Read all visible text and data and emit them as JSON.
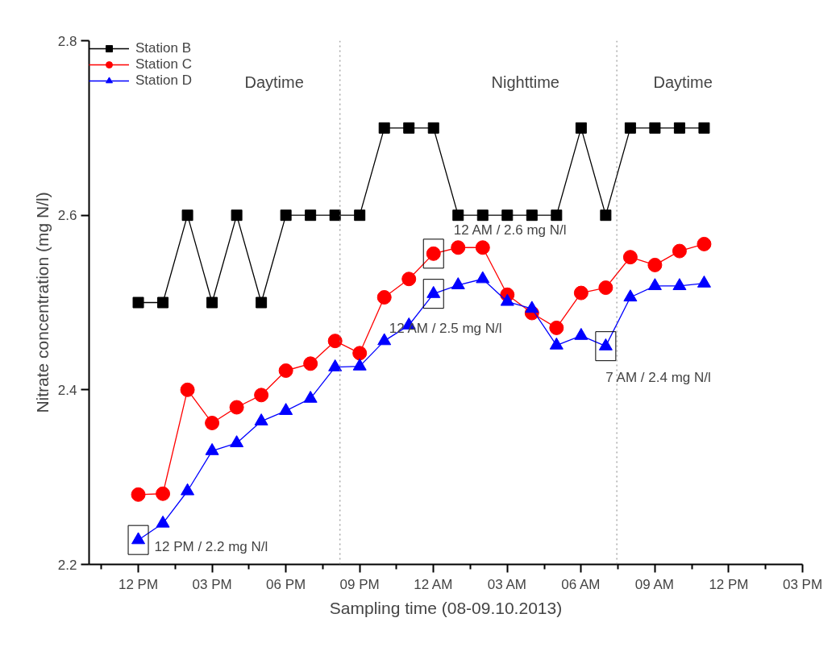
{
  "chart_data": {
    "type": "line",
    "xlabel": "Sampling time (08-09.10.2013)",
    "ylabel": "Nitrate concentration (mg N/l)",
    "x": [
      "2013-10-08T12:00",
      "2013-10-08T13:00",
      "2013-10-08T14:00",
      "2013-10-08T15:00",
      "2013-10-08T16:00",
      "2013-10-08T17:00",
      "2013-10-08T18:00",
      "2013-10-08T19:00",
      "2013-10-08T20:00",
      "2013-10-08T21:00",
      "2013-10-08T22:00",
      "2013-10-08T23:00",
      "2013-10-09T00:00",
      "2013-10-09T01:00",
      "2013-10-09T02:00",
      "2013-10-09T03:00",
      "2013-10-09T04:00",
      "2013-10-09T05:00",
      "2013-10-09T06:00",
      "2013-10-09T07:00",
      "2013-10-09T08:00",
      "2013-10-09T09:00",
      "2013-10-09T10:00",
      "2013-10-09T11:00"
    ],
    "series": [
      {
        "name": "Station B",
        "color": "#000000",
        "marker": "square",
        "values": [
          2.5,
          2.5,
          2.6,
          2.5,
          2.6,
          2.5,
          2.6,
          2.6,
          2.6,
          2.6,
          2.7,
          2.7,
          2.7,
          2.6,
          2.6,
          2.6,
          2.6,
          2.6,
          2.7,
          2.6,
          2.7,
          2.7,
          2.7,
          2.7
        ]
      },
      {
        "name": "Station C",
        "color": "#ff0000",
        "marker": "circle",
        "values": [
          2.28,
          2.281,
          2.4,
          2.362,
          2.38,
          2.394,
          2.422,
          2.43,
          2.456,
          2.442,
          2.506,
          2.527,
          2.556,
          2.563,
          2.563,
          2.509,
          2.488,
          2.471,
          2.511,
          2.517,
          2.552,
          2.543,
          2.559,
          2.567
        ]
      },
      {
        "name": "Station D",
        "color": "#0000ff",
        "marker": "triangle",
        "values": [
          2.228,
          2.247,
          2.284,
          2.33,
          2.339,
          2.364,
          2.376,
          2.39,
          2.426,
          2.427,
          2.456,
          2.474,
          2.51,
          2.52,
          2.527,
          2.501,
          2.493,
          2.451,
          2.462,
          2.45,
          2.506,
          2.519,
          2.519,
          2.522
        ]
      }
    ],
    "xlim": [
      "2013-10-08T10:00",
      "2013-10-09T15:00"
    ],
    "ylim": [
      2.2,
      2.8
    ],
    "xticks": [
      {
        "value": "2013-10-08T10:30",
        "label": null
      },
      {
        "value": "2013-10-08T12:00",
        "label": "12 PM"
      },
      {
        "value": "2013-10-08T13:30",
        "label": null
      },
      {
        "value": "2013-10-08T15:00",
        "label": "03 PM"
      },
      {
        "value": "2013-10-08T16:30",
        "label": null
      },
      {
        "value": "2013-10-08T18:00",
        "label": "06 PM"
      },
      {
        "value": "2013-10-08T19:30",
        "label": null
      },
      {
        "value": "2013-10-08T21:00",
        "label": "09 PM"
      },
      {
        "value": "2013-10-08T22:30",
        "label": null
      },
      {
        "value": "2013-10-09T00:00",
        "label": "12 AM"
      },
      {
        "value": "2013-10-09T01:30",
        "label": null
      },
      {
        "value": "2013-10-09T03:00",
        "label": "03 AM"
      },
      {
        "value": "2013-10-09T04:30",
        "label": null
      },
      {
        "value": "2013-10-09T06:00",
        "label": "06 AM"
      },
      {
        "value": "2013-10-09T07:30",
        "label": null
      },
      {
        "value": "2013-10-09T09:00",
        "label": "09 AM"
      },
      {
        "value": "2013-10-09T10:30",
        "label": null
      },
      {
        "value": "2013-10-09T12:00",
        "label": "12 PM"
      },
      {
        "value": "2013-10-09T13:30",
        "label": null
      },
      {
        "value": "2013-10-09T15:00",
        "label": "03 PM"
      }
    ],
    "yticks": [
      2.2,
      2.4,
      2.6,
      2.8
    ],
    "ref_lines": [
      {
        "axis": "x",
        "value": "2013-10-08T20:12",
        "line_style": "dotted",
        "color": "#808080"
      },
      {
        "axis": "x",
        "value": "2013-10-09T07:27",
        "line_style": "dotted",
        "color": "#808080"
      }
    ],
    "annotations": [
      "Daytime",
      "Nighttime",
      "Daytime",
      {
        "text": "12 PM / 2.2 mg N/l",
        "x": "2013-10-08T12:00",
        "y": 2.228
      },
      {
        "text": "12 AM / 2.6 mg N/l",
        "x": "2013-10-09T00:00",
        "y": 2.556
      },
      {
        "text": "12 AM / 2.5 mg N/l",
        "x": "2013-10-09T00:00",
        "y": 2.51
      },
      {
        "text": "7 AM / 2.4 mg N/l",
        "x": "2013-10-09T07:00",
        "y": 2.45
      }
    ],
    "grid": false,
    "legend": "top left",
    "line_style": "solid"
  }
}
